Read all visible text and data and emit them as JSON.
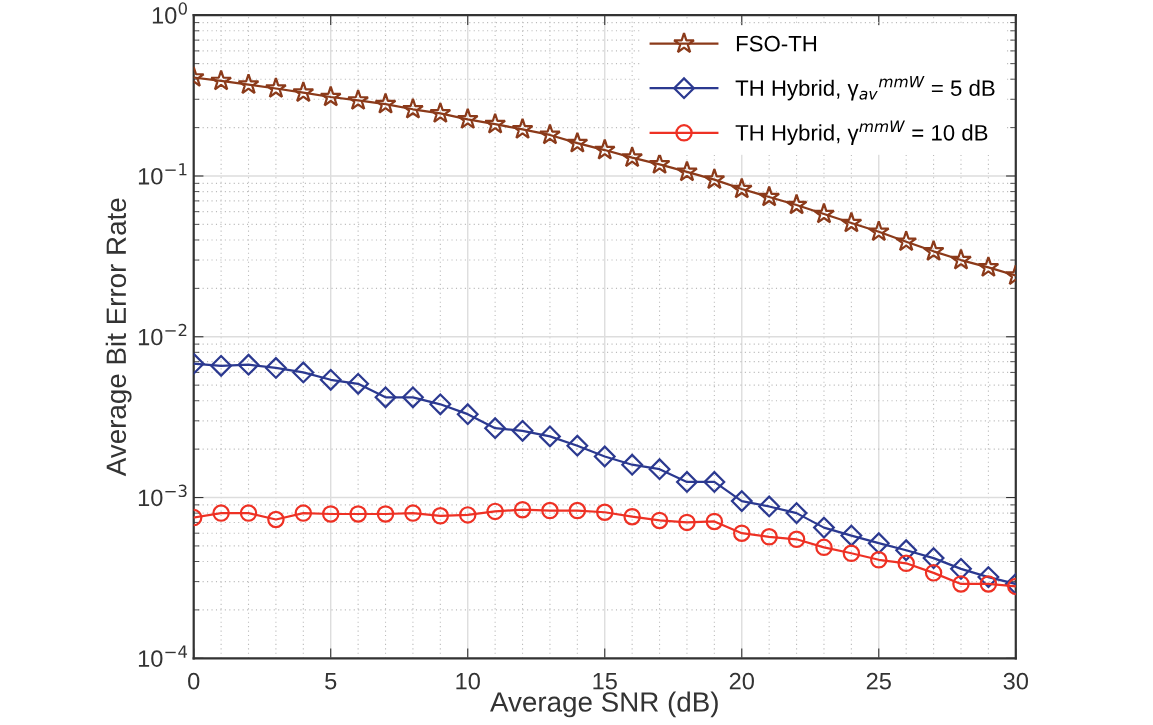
{
  "chart_data": {
    "type": "line",
    "xlabel": "Average SNR (dB)",
    "ylabel": "Average Bit Error Rate",
    "x": [
      0,
      1,
      2,
      3,
      4,
      5,
      6,
      7,
      8,
      9,
      10,
      11,
      12,
      13,
      14,
      15,
      16,
      17,
      18,
      19,
      20,
      21,
      22,
      23,
      24,
      25,
      26,
      27,
      28,
      29,
      30
    ],
    "series": [
      {
        "name": "FSO-TH",
        "color": "#8b3a1a",
        "marker": "star",
        "values": [
          0.41,
          0.39,
          0.37,
          0.35,
          0.33,
          0.31,
          0.295,
          0.28,
          0.26,
          0.245,
          0.225,
          0.21,
          0.195,
          0.18,
          0.16,
          0.145,
          0.13,
          0.118,
          0.106,
          0.095,
          0.083,
          0.074,
          0.066,
          0.058,
          0.051,
          0.045,
          0.039,
          0.034,
          0.03,
          0.027,
          0.024
        ]
      },
      {
        "name": "TH Hybrid, γ$_{av}$$^{mmW}$ = 5 dB",
        "color": "#2b3990",
        "marker": "diamond",
        "values": [
          0.0068,
          0.0066,
          0.0067,
          0.0064,
          0.006,
          0.0054,
          0.0051,
          0.0042,
          0.0042,
          0.0038,
          0.0033,
          0.0027,
          0.0026,
          0.0024,
          0.0021,
          0.0018,
          0.0016,
          0.0015,
          0.00125,
          0.00125,
          0.00095,
          0.00088,
          0.0008,
          0.00065,
          0.00058,
          0.00052,
          0.00047,
          0.00042,
          0.00036,
          0.00032,
          0.00029
        ]
      },
      {
        "name": "TH Hybrid, γ$^{mmW}$ = 10 dB",
        "color": "#ee3124",
        "marker": "circle",
        "values": [
          0.00075,
          0.0008,
          0.0008,
          0.00073,
          0.0008,
          0.00079,
          0.00079,
          0.00079,
          0.0008,
          0.00077,
          0.00078,
          0.00082,
          0.00084,
          0.00083,
          0.00083,
          0.00081,
          0.00076,
          0.00072,
          0.0007,
          0.00071,
          0.0006,
          0.00057,
          0.00055,
          0.00049,
          0.00045,
          0.00041,
          0.00039,
          0.00034,
          0.00029,
          0.00029,
          0.00028
        ]
      }
    ],
    "log": "y",
    "xlim": [
      0,
      30
    ],
    "xticks": [
      0,
      5,
      10,
      15,
      20,
      25,
      30
    ],
    "ylim": [
      0.0001,
      1
    ],
    "yticks": [
      {
        "value": 0.0001,
        "label": "10$^{−4}$"
      },
      {
        "value": 0.001,
        "label": "10$^{−3}$"
      },
      {
        "value": 0.01,
        "label": "10$^{−2}$"
      },
      {
        "value": 0.1,
        "label": "10$^{−1}$"
      },
      {
        "value": 1,
        "label": "10$^{0}$"
      }
    ],
    "grid": true,
    "legend": "top right",
    "line_style": "solid"
  }
}
